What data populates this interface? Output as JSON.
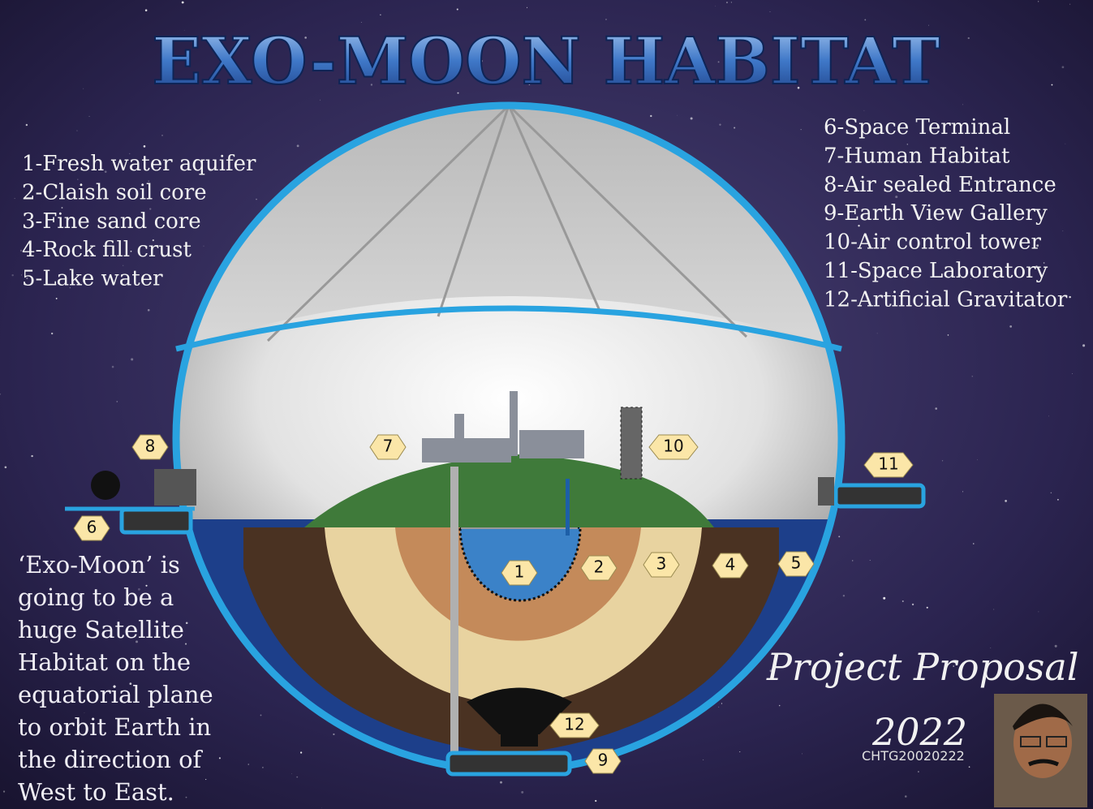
{
  "title": "EXO-MOON HABITAT",
  "legend_left": [
    "1-Fresh water aquifer",
    "2-Claish soil core",
    "3-Fine sand core",
    "4-Rock fill crust",
    "5-Lake water"
  ],
  "legend_right": [
    "6-Space Terminal",
    "7-Human Habitat",
    "8-Air sealed Entrance",
    "9-Earth View Gallery",
    "10-Air control tower",
    "11-Space Laboratory",
    "12-Artificial Gravitator"
  ],
  "description": "‘Exo-Moon’ is going to be a huge Satellite Habitat on the equatorial plane to orbit Earth in the direction of West to East.",
  "footer": {
    "project": "Project Proposal",
    "year": "2022",
    "code": "CHTG20020222"
  },
  "markers": [
    "1",
    "2",
    "3",
    "4",
    "5",
    "6",
    "7",
    "8",
    "9",
    "10",
    "11",
    "12"
  ]
}
